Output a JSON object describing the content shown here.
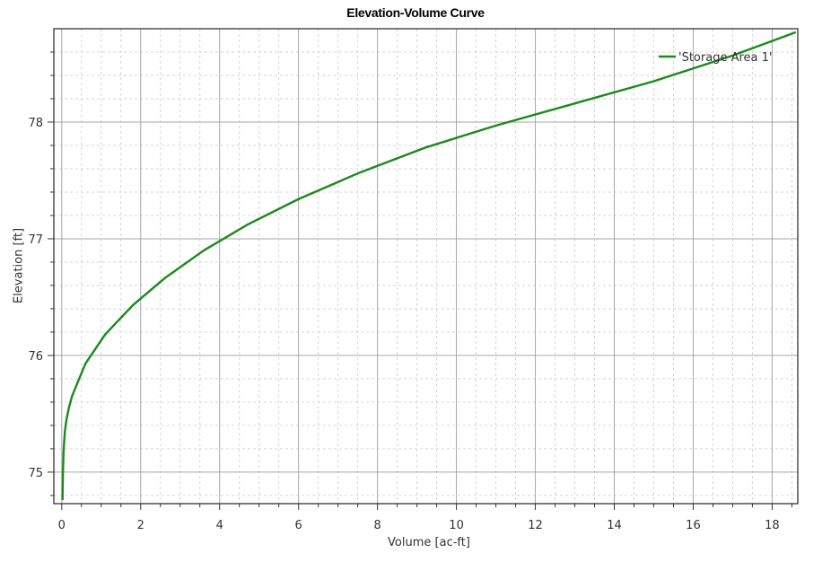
{
  "chart_data": {
    "type": "line",
    "title": "Elevation-Volume Curve",
    "xlabel": "Volume [ac-ft]",
    "ylabel": "Elevation [ft]",
    "xlim": [
      -0.2,
      18.65
    ],
    "ylim": [
      74.73,
      78.8
    ],
    "x_ticks": [
      0,
      2,
      4,
      6,
      8,
      10,
      12,
      14,
      16,
      18
    ],
    "x_tick_labels": [
      "0",
      "2",
      "4",
      "6",
      "8",
      "10",
      "12",
      "14",
      "16",
      "18"
    ],
    "y_ticks": [
      75,
      76,
      77,
      78
    ],
    "y_tick_labels": [
      "75",
      "76",
      "77",
      "78"
    ],
    "grid": true,
    "legend_position": "top-right",
    "series": [
      {
        "name": "'Storage Area 1'",
        "color": "#1a8a1a",
        "x": [
          0.02,
          0.03,
          0.05,
          0.08,
          0.12,
          0.18,
          0.26,
          0.38,
          0.6,
          1.1,
          1.8,
          2.6,
          3.6,
          4.7,
          6.0,
          7.5,
          9.2,
          11.0,
          13.0,
          15.0,
          17.0,
          18.6
        ],
        "y": [
          74.76,
          75.0,
          75.2,
          75.35,
          75.45,
          75.55,
          75.65,
          75.75,
          75.93,
          76.18,
          76.43,
          76.66,
          76.9,
          77.12,
          77.34,
          77.56,
          77.78,
          77.97,
          78.16,
          78.35,
          78.57,
          78.77
        ]
      }
    ]
  }
}
